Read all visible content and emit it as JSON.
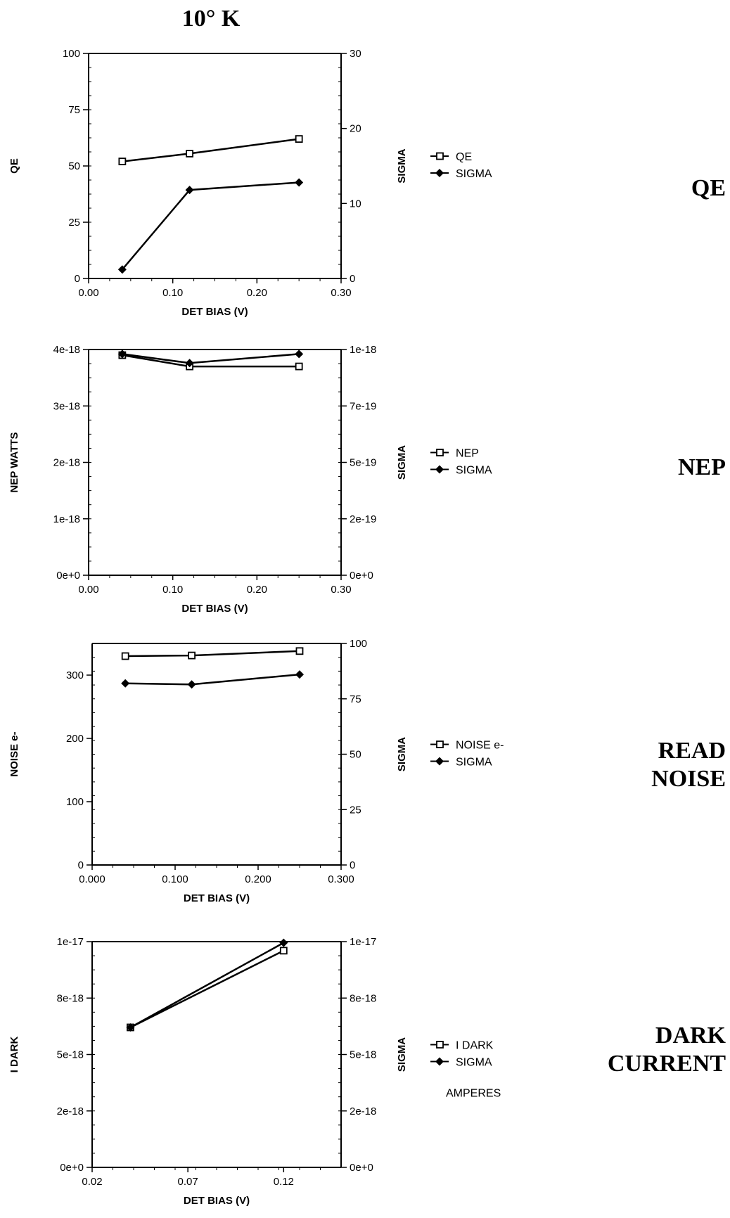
{
  "page_title": "10° K",
  "chart_data": [
    {
      "type": "line",
      "section_label": "QE",
      "xlabel": "DET BIAS (V)",
      "ylabel": "QE",
      "y2label": "SIGMA",
      "xlim": [
        0,
        0.3
      ],
      "xticks": [
        "0.00",
        "0.10",
        "0.20",
        "0.30"
      ],
      "ylim": [
        0,
        100
      ],
      "yticks": [
        "0",
        "25",
        "50",
        "75",
        "100"
      ],
      "y2lim": [
        0,
        30
      ],
      "y2ticks": [
        "0",
        "10",
        "20",
        "30"
      ],
      "x": [
        0.04,
        0.12,
        0.25
      ],
      "series": [
        {
          "name": "QE",
          "axis": "left",
          "marker": "open-square",
          "values": [
            52,
            55.5,
            62
          ]
        },
        {
          "name": "SIGMA",
          "axis": "right",
          "marker": "filled-diamond",
          "values": [
            1.2,
            11.8,
            12.8
          ]
        }
      ],
      "legend_note": ""
    },
    {
      "type": "line",
      "section_label": "NEP",
      "xlabel": "DET BIAS (V)",
      "ylabel": "NEP WATTS",
      "y2label": "SIGMA",
      "xlim": [
        0,
        0.3
      ],
      "xticks": [
        "0.00",
        "0.10",
        "0.20",
        "0.30"
      ],
      "ylim": [
        0,
        4e-18
      ],
      "yticks": [
        "0e+0",
        "1e-18",
        "2e-18",
        "3e-18",
        "4e-18"
      ],
      "y2lim": [
        0,
        1e-18
      ],
      "y2ticks": [
        "0e+0",
        "2e-19",
        "5e-19",
        "7e-19",
        "1e-18"
      ],
      "x": [
        0.04,
        0.12,
        0.25
      ],
      "series": [
        {
          "name": "NEP",
          "axis": "left",
          "marker": "open-square",
          "values": [
            3.9e-18,
            3.7e-18,
            3.7e-18
          ]
        },
        {
          "name": "SIGMA",
          "axis": "right",
          "marker": "filled-diamond",
          "values": [
            9.8e-19,
            9.4e-19,
            9.8e-19
          ]
        }
      ],
      "legend_note": ""
    },
    {
      "type": "line",
      "section_label": "READ\nNOISE",
      "xlabel": "DET BIAS (V)",
      "ylabel": "NOISE e-",
      "y2label": "SIGMA",
      "xlim": [
        0,
        0.3
      ],
      "xticks": [
        "0.000",
        "0.100",
        "0.200",
        "0.300"
      ],
      "ylim": [
        0,
        350
      ],
      "yticks": [
        "0",
        "100",
        "200",
        "300"
      ],
      "ytick_values": [
        0,
        100,
        200,
        300
      ],
      "y2lim": [
        0,
        100
      ],
      "y2ticks": [
        "0",
        "25",
        "50",
        "75",
        "100"
      ],
      "x": [
        0.04,
        0.12,
        0.25
      ],
      "series": [
        {
          "name": "NOISE e-",
          "axis": "left",
          "marker": "open-square",
          "values": [
            330,
            331,
            338
          ]
        },
        {
          "name": "SIGMA",
          "axis": "right",
          "marker": "filled-diamond",
          "values": [
            82,
            81.5,
            86
          ]
        }
      ],
      "legend_note": ""
    },
    {
      "type": "line",
      "section_label": "DARK\nCURRENT",
      "xlabel": "DET BIAS (V)",
      "ylabel": "I DARK",
      "y2label": "SIGMA",
      "xlim": [
        0.02,
        0.15
      ],
      "xticks": [
        "0.02",
        "0.07",
        "0.12"
      ],
      "xtick_values": [
        0.02,
        0.07,
        0.12
      ],
      "ylim": [
        0,
        1e-17
      ],
      "yticks": [
        "0e+0",
        "2e-18",
        "5e-18",
        "8e-18",
        "1e-17"
      ],
      "y2lim": [
        0,
        1e-17
      ],
      "y2ticks": [
        "0e+0",
        "2e-18",
        "5e-18",
        "8e-18",
        "1e-17"
      ],
      "x": [
        0.04,
        0.12
      ],
      "series": [
        {
          "name": "I DARK",
          "axis": "left",
          "marker": "open-square",
          "values": [
            6.2e-18,
            9.6e-18
          ]
        },
        {
          "name": "SIGMA",
          "axis": "right",
          "marker": "filled-diamond",
          "values": [
            6.2e-18,
            9.95e-18
          ]
        }
      ],
      "legend_note": "AMPERES"
    }
  ]
}
